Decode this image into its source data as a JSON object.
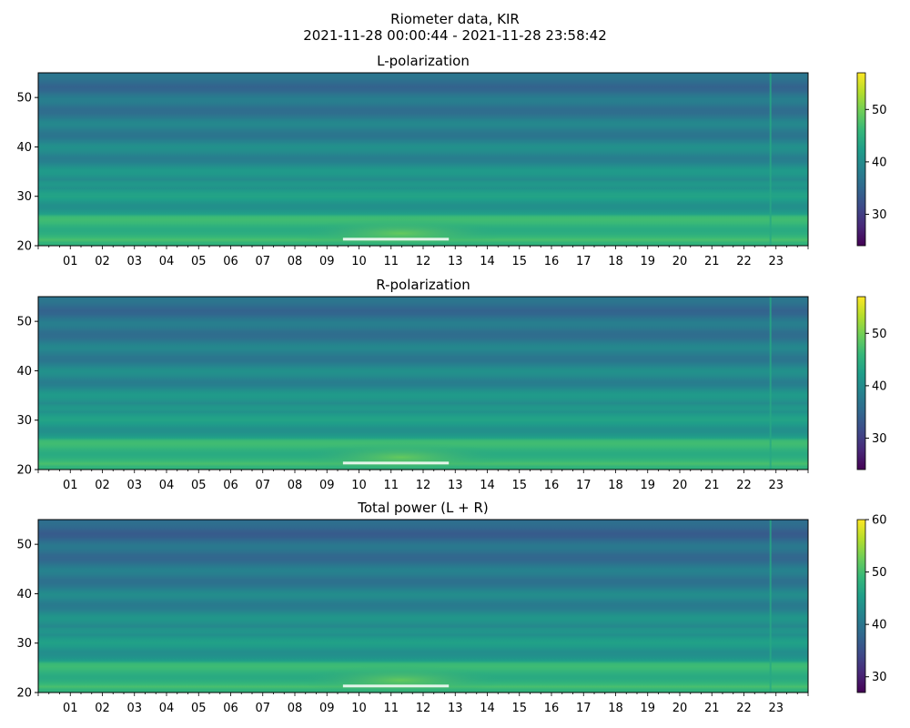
{
  "figure": {
    "title_line1": "Riometer data, KIR",
    "title_line2": "2021-11-28 00:00:44 - 2021-11-28 23:58:42"
  },
  "chart_data": [
    {
      "type": "heatmap",
      "title": "L-polarization",
      "xlabel": "",
      "ylabel": "",
      "x_tick_labels": [
        "01",
        "02",
        "03",
        "04",
        "05",
        "06",
        "07",
        "08",
        "09",
        "10",
        "11",
        "12",
        "13",
        "14",
        "15",
        "16",
        "17",
        "18",
        "19",
        "20",
        "21",
        "22",
        "23"
      ],
      "xlim": [
        0,
        24
      ],
      "ylim": [
        20,
        55
      ],
      "y_ticks": [
        20,
        30,
        40,
        50
      ],
      "colorbar": {
        "colormap": "viridis",
        "range": [
          24,
          57
        ],
        "ticks": [
          30,
          40,
          50
        ]
      },
      "colors": {
        "low": "#440154",
        "mid": "#21918c",
        "high": "#fde725"
      }
    },
    {
      "type": "heatmap",
      "title": "R-polarization",
      "xlabel": "",
      "ylabel": "",
      "x_tick_labels": [
        "01",
        "02",
        "03",
        "04",
        "05",
        "06",
        "07",
        "08",
        "09",
        "10",
        "11",
        "12",
        "13",
        "14",
        "15",
        "16",
        "17",
        "18",
        "19",
        "20",
        "21",
        "22",
        "23"
      ],
      "xlim": [
        0,
        24
      ],
      "ylim": [
        20,
        55
      ],
      "y_ticks": [
        20,
        30,
        40,
        50
      ],
      "colorbar": {
        "colormap": "viridis",
        "range": [
          24,
          57
        ],
        "ticks": [
          30,
          40,
          50
        ]
      },
      "colors": {
        "low": "#440154",
        "mid": "#21918c",
        "high": "#fde725"
      }
    },
    {
      "type": "heatmap",
      "title": "Total power (L + R)",
      "xlabel": "",
      "ylabel": "",
      "x_tick_labels": [
        "01",
        "02",
        "03",
        "04",
        "05",
        "06",
        "07",
        "08",
        "09",
        "10",
        "11",
        "12",
        "13",
        "14",
        "15",
        "16",
        "17",
        "18",
        "19",
        "20",
        "21",
        "22",
        "23"
      ],
      "xlim": [
        0,
        24
      ],
      "ylim": [
        20,
        55
      ],
      "y_ticks": [
        20,
        30,
        40,
        50
      ],
      "colorbar": {
        "colormap": "viridis",
        "range": [
          27,
          60
        ],
        "ticks": [
          30,
          40,
          50,
          60
        ]
      },
      "colors": {
        "low": "#440154",
        "mid": "#21918c",
        "high": "#fde725"
      }
    }
  ]
}
